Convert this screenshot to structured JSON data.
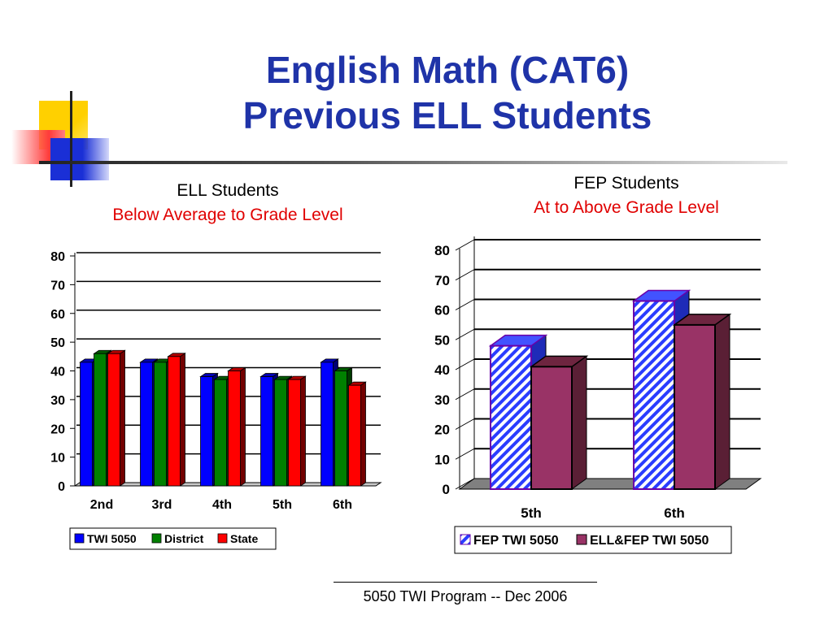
{
  "slide": {
    "title_line1": "English Math (CAT6)",
    "title_line2": "Previous ELL Students",
    "footer": "5050 TWI Program -- Dec 2006"
  },
  "left_panel": {
    "heading": "ELL Students",
    "subheading": "Below Average to Grade Level"
  },
  "right_panel": {
    "heading": "FEP Students",
    "subheading": "At to Above Grade Level"
  },
  "colors": {
    "title": "#1f33a8",
    "subheading": "#e00000",
    "twi5050": "#0000ff",
    "district": "#008000",
    "state": "#ff0000",
    "fep_twi": "#2a3cff",
    "ell_fep_twi": "#993366"
  },
  "chart_data": [
    {
      "type": "bar",
      "categories": [
        "2nd",
        "3rd",
        "4th",
        "5th",
        "6th"
      ],
      "series": [
        {
          "name": "TWI 5050",
          "values": [
            43,
            43,
            38,
            38,
            43
          ]
        },
        {
          "name": "District",
          "values": [
            46,
            43,
            37,
            37,
            40
          ]
        },
        {
          "name": "State",
          "values": [
            46,
            45,
            40,
            37,
            35
          ]
        }
      ],
      "yticks": [
        "0",
        "10",
        "20",
        "30",
        "40",
        "50",
        "60",
        "70",
        "80"
      ],
      "ylim": [
        0,
        80
      ],
      "grid": true,
      "legend": "bottom",
      "style": "3d"
    },
    {
      "type": "bar",
      "categories": [
        "5th",
        "6th"
      ],
      "series": [
        {
          "name": "FEP TWI 5050",
          "values": [
            48,
            63
          ]
        },
        {
          "name": "ELL&FEP TWI 5050",
          "values": [
            41,
            55
          ]
        }
      ],
      "yticks": [
        "0",
        "10",
        "20",
        "30",
        "40",
        "50",
        "60",
        "70",
        "80"
      ],
      "ylim": [
        0,
        80
      ],
      "grid": true,
      "legend": "bottom",
      "style": "3d"
    }
  ]
}
